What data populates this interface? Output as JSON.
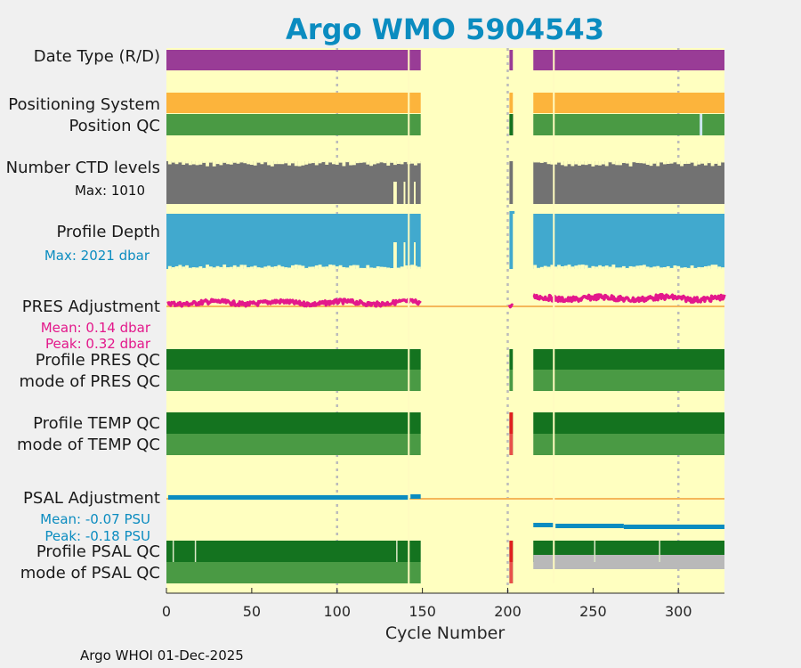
{
  "colors": {
    "background": "#f0f0f0",
    "plot_bg": "#ffffc0",
    "title": "#0b8cc0",
    "date_type": "#993c96",
    "positioning": "#fcb43c",
    "qc_good": "#4a9a44",
    "qc_dark": "#14731f",
    "ctd_levels": "#727272",
    "profile_depth": "#41a9ce",
    "pres_adj": "#e3188b",
    "psal_adj": "#0b8cc0",
    "zero_line": "#f5b75a",
    "qc_bad": "#e02020",
    "qc_gray": "#b9b9b9",
    "gap": "#fffbc0",
    "grid": "#bbbbbb"
  },
  "chart_data": {
    "type": "table",
    "title": "Argo WMO 5904543",
    "xlabel": "Cycle Number",
    "xlim": [
      0,
      327
    ],
    "xticks": [
      0,
      50,
      100,
      150,
      200,
      250,
      300
    ],
    "grid_x": [
      100,
      200,
      300
    ],
    "data_segments": [
      [
        0,
        149
      ],
      [
        201,
        203
      ],
      [
        215,
        327
      ]
    ],
    "gap_cycles": [
      142,
      227
    ],
    "rows": {
      "date_type": {
        "label": "Date Type (R/D)"
      },
      "positioning": {
        "label": "Positioning System"
      },
      "position_qc": {
        "label": "Position QC",
        "bad_cycles": [
          202,
          313
        ]
      },
      "ctd_levels": {
        "label": "Number CTD levels",
        "max_label": "Max: 1010",
        "max": 1010
      },
      "profile_depth": {
        "label": "Profile Depth",
        "max_label": "Max: 2021 dbar",
        "max": 2021
      },
      "pres_adjustment": {
        "label": "PRES Adjustment",
        "mean_label": "Mean: 0.14 dbar",
        "peak_label": "Peak: 0.32 dbar",
        "mean": 0.14,
        "peak": 0.32
      },
      "profile_pres_qc": {
        "label": "Profile PRES QC",
        "mode_label": "mode of PRES QC"
      },
      "profile_temp_qc": {
        "label": "Profile TEMP QC",
        "mode_label": "mode of TEMP QC"
      },
      "psal_adjustment": {
        "label": "PSAL Adjustment",
        "mean_label": "Mean: -0.07 PSU",
        "peak_label": "Peak: -0.18 PSU",
        "mean": -0.07,
        "peak": -0.18
      },
      "profile_psal_qc": {
        "label": "Profile PSAL QC",
        "mode_label": "mode of PSAL QC"
      }
    }
  },
  "footer": "Argo WHOI 01-Dec-2025"
}
